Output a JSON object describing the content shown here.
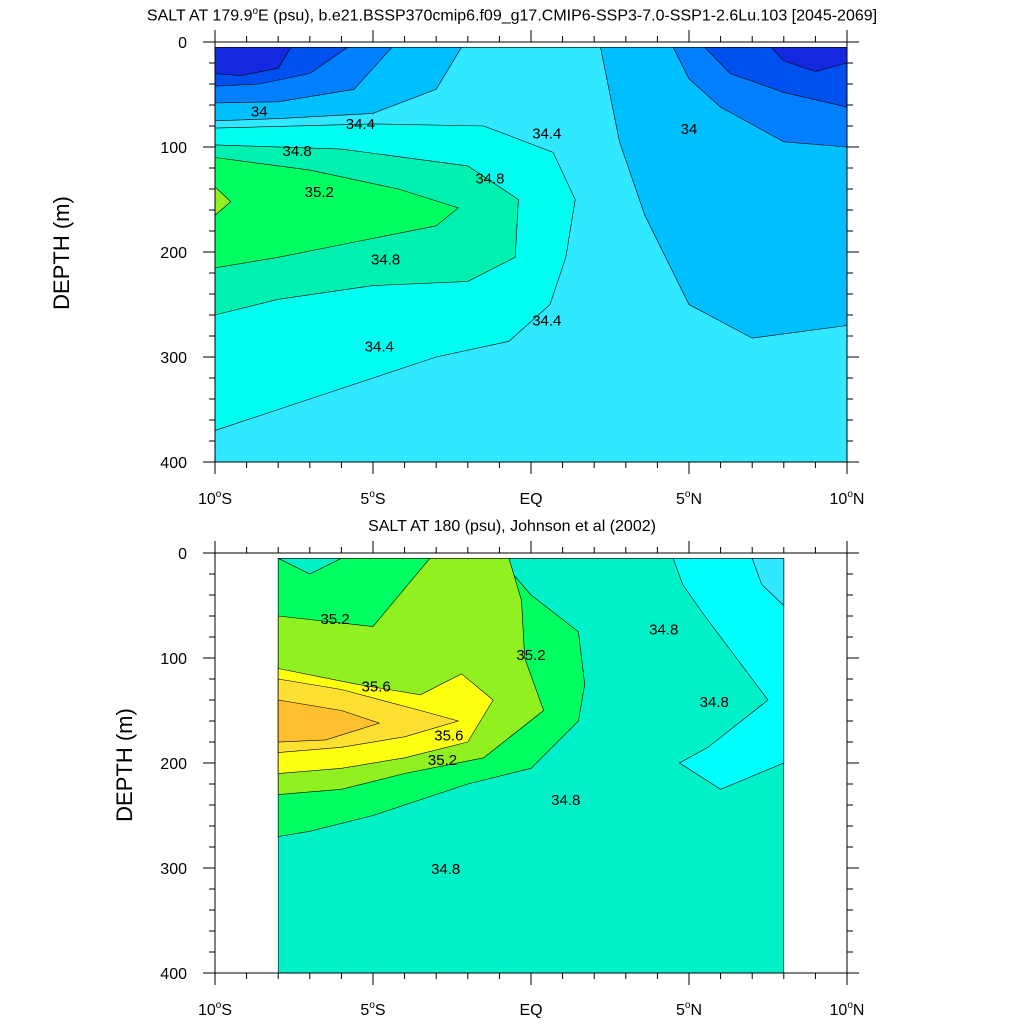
{
  "chart_data": [
    {
      "type": "contour",
      "title": "SALT AT 179.9°E (psu), b.e21.BSSP370cmip6.f09_g17.CMIP6-SSP3-7.0-SSP1-2.6Lu.103 [2045-2069]",
      "title_parts": {
        "pre": "SALT AT 179.9",
        "sup": "o",
        "post": "E (psu), b.e21.BSSP370cmip6.f09_g17.CMIP6-SSP3-7.0-SSP1-2.6Lu.103 [2045-2069]"
      },
      "ylabel": "DEPTH (m)",
      "xlabel": "",
      "xlim": [
        -10,
        10
      ],
      "ylim": [
        400,
        0
      ],
      "x_ticks": [
        {
          "value": -10,
          "label": "10",
          "deg": "o",
          "hemi": "S"
        },
        {
          "value": -5,
          "label": "5",
          "deg": "o",
          "hemi": "S"
        },
        {
          "value": 0,
          "label": "EQ",
          "deg": "",
          "hemi": ""
        },
        {
          "value": 5,
          "label": "5",
          "deg": "o",
          "hemi": "N"
        },
        {
          "value": 10,
          "label": "10",
          "deg": "o",
          "hemi": "N"
        }
      ],
      "y_ticks": [
        0,
        100,
        200,
        300,
        400
      ],
      "contour_labels": [
        {
          "text": "34",
          "x": -8.6,
          "y": 66
        },
        {
          "text": "34.4",
          "x": -5.4,
          "y": 78
        },
        {
          "text": "34.8",
          "x": -7.4,
          "y": 104
        },
        {
          "text": "35.2",
          "x": -6.7,
          "y": 143
        },
        {
          "text": "34.8",
          "x": -1.3,
          "y": 130
        },
        {
          "text": "34.4",
          "x": 0.5,
          "y": 87
        },
        {
          "text": "34",
          "x": 5.0,
          "y": 83
        },
        {
          "text": "34.8",
          "x": -4.6,
          "y": 207
        },
        {
          "text": "34.4",
          "x": 0.5,
          "y": 265
        },
        {
          "text": "34.4",
          "x": -4.8,
          "y": 290
        }
      ],
      "regions": [
        {
          "value": 34.6,
          "color": "#30e8ff",
          "points": [
            [
              -10,
              5
            ],
            [
              10,
              5
            ],
            [
              10,
              400
            ],
            [
              -10,
              400
            ]
          ]
        },
        {
          "value": 34.2,
          "color": "#00bfff",
          "points": [
            [
              3.2,
              5
            ],
            [
              10,
              5
            ],
            [
              10,
              270
            ],
            [
              7,
              282
            ],
            [
              5,
              250
            ],
            [
              3.6,
              165
            ],
            [
              2.8,
              95
            ],
            [
              2.2,
              5
            ]
          ]
        },
        {
          "value": 33.8,
          "color": "#0080ff",
          "points": [
            [
              4.5,
              5
            ],
            [
              10,
              5
            ],
            [
              10,
              100
            ],
            [
              8,
              95
            ],
            [
              6,
              62
            ],
            [
              5,
              35
            ]
          ]
        },
        {
          "value": 33.4,
          "color": "#0050f0",
          "points": [
            [
              5.5,
              5
            ],
            [
              10,
              5
            ],
            [
              10,
              62
            ],
            [
              8,
              48
            ],
            [
              6.3,
              30
            ]
          ]
        },
        {
          "value": 33.0,
          "color": "#1428e0",
          "points": [
            [
              7.6,
              5
            ],
            [
              10,
              5
            ],
            [
              10,
              20
            ],
            [
              9,
              28
            ],
            [
              8,
              18
            ]
          ]
        },
        {
          "value": 34.2,
          "color": "#00bfff",
          "points": [
            [
              -10,
              5
            ],
            [
              -2.2,
              5
            ],
            [
              -3,
              45
            ],
            [
              -5,
              68
            ],
            [
              -8,
              73
            ],
            [
              -10,
              75
            ]
          ]
        },
        {
          "value": 33.8,
          "color": "#0080ff",
          "points": [
            [
              -10,
              5
            ],
            [
              -4.4,
              5
            ],
            [
              -5.6,
              45
            ],
            [
              -8,
              57
            ],
            [
              -10,
              58
            ]
          ]
        },
        {
          "value": 33.4,
          "color": "#0050f0",
          "points": [
            [
              -10,
              5
            ],
            [
              -5.8,
              5
            ],
            [
              -7,
              30
            ],
            [
              -8.6,
              40
            ],
            [
              -10,
              42
            ]
          ]
        },
        {
          "value": 33.0,
          "color": "#1428e0",
          "points": [
            [
              -10,
              5
            ],
            [
              -7.6,
              5
            ],
            [
              -8,
              25
            ],
            [
              -9.2,
              32
            ],
            [
              -10,
              30
            ]
          ]
        },
        {
          "value": 34.6,
          "color": "#00fff0",
          "points": [
            [
              -10,
              82
            ],
            [
              -5,
              78
            ],
            [
              -1.5,
              80
            ],
            [
              0.7,
              105
            ],
            [
              1.4,
              150
            ],
            [
              1.1,
              205
            ],
            [
              0.6,
              250
            ],
            [
              -0.7,
              285
            ],
            [
              -3,
              300
            ],
            [
              -6,
              330
            ],
            [
              -10,
              370
            ]
          ]
        },
        {
          "value": 35.0,
          "color": "#00f0b0",
          "points": [
            [
              -10,
              98
            ],
            [
              -6,
              102
            ],
            [
              -2,
              118
            ],
            [
              -0.4,
              150
            ],
            [
              -0.5,
              205
            ],
            [
              -2,
              228
            ],
            [
              -5,
              232
            ],
            [
              -8,
              245
            ],
            [
              -10,
              260
            ]
          ]
        },
        {
          "value": 35.2,
          "color": "#00ff60",
          "points": [
            [
              -10,
              110
            ],
            [
              -7,
              122
            ],
            [
              -4.2,
              140
            ],
            [
              -2.3,
              158
            ],
            [
              -3,
              175
            ],
            [
              -5.5,
              190
            ],
            [
              -8,
              205
            ],
            [
              -10,
              215
            ]
          ]
        },
        {
          "value": 35.4,
          "color": "#90f020",
          "points": [
            [
              -10,
              138
            ],
            [
              -9.5,
              152
            ],
            [
              -10,
              165
            ]
          ]
        }
      ]
    },
    {
      "type": "contour",
      "title": "SALT AT 180 (psu), Johnson et al (2002)",
      "title_parts": {
        "pre": "SALT AT 180 (psu), Johnson et al (2002)",
        "sup": "",
        "post": ""
      },
      "ylabel": "DEPTH (m)",
      "xlabel": "",
      "xlim": [
        -10,
        10
      ],
      "ylim": [
        400,
        0
      ],
      "data_extent_x": [
        -8,
        8
      ],
      "data_extent_y": [
        5,
        400
      ],
      "x_ticks": [
        {
          "value": -10,
          "label": "10",
          "deg": "o",
          "hemi": "S"
        },
        {
          "value": -5,
          "label": "5",
          "deg": "o",
          "hemi": "S"
        },
        {
          "value": 0,
          "label": "EQ",
          "deg": "",
          "hemi": ""
        },
        {
          "value": 5,
          "label": "5",
          "deg": "o",
          "hemi": "N"
        },
        {
          "value": 10,
          "label": "10",
          "deg": "o",
          "hemi": "N"
        }
      ],
      "y_ticks": [
        0,
        100,
        200,
        300,
        400
      ],
      "contour_labels": [
        {
          "text": "35.2",
          "x": -6.2,
          "y": 63
        },
        {
          "text": "35.2",
          "x": 0.0,
          "y": 97
        },
        {
          "text": "35.6",
          "x": -4.9,
          "y": 127
        },
        {
          "text": "35.6",
          "x": -2.6,
          "y": 174
        },
        {
          "text": "35.2",
          "x": -2.8,
          "y": 197
        },
        {
          "text": "34.8",
          "x": 4.2,
          "y": 73
        },
        {
          "text": "34.8",
          "x": 5.8,
          "y": 142
        },
        {
          "text": "34.8",
          "x": 1.1,
          "y": 235
        },
        {
          "text": "34.8",
          "x": -2.7,
          "y": 301
        }
      ],
      "regions": [
        {
          "value": 35.0,
          "color": "#00f0c8",
          "points": [
            [
              -8,
              5
            ],
            [
              8,
              5
            ],
            [
              8,
              400
            ],
            [
              -8,
              400
            ]
          ]
        },
        {
          "value": 34.6,
          "color": "#00ffff",
          "points": [
            [
              4.5,
              5
            ],
            [
              8,
              5
            ],
            [
              8,
              200
            ],
            [
              6,
              225
            ],
            [
              4.7,
              200
            ],
            [
              5.6,
              185
            ],
            [
              7.5,
              140
            ],
            [
              6.5,
              100
            ],
            [
              5.5,
              60
            ],
            [
              4.8,
              30
            ]
          ]
        },
        {
          "value": 34.4,
          "color": "#30e8ff",
          "points": [
            [
              7,
              5
            ],
            [
              8,
              5
            ],
            [
              8,
              50
            ],
            [
              7.3,
              30
            ]
          ]
        },
        {
          "value": 35.2,
          "color": "#00ff60",
          "points": [
            [
              -8,
              5
            ],
            [
              -7,
              20
            ],
            [
              -6,
              5
            ],
            [
              -1,
              5
            ],
            [
              0,
              40
            ],
            [
              1.5,
              75
            ],
            [
              1.7,
              125
            ],
            [
              1.5,
              160
            ],
            [
              0,
              205
            ],
            [
              -2,
              220
            ],
            [
              -5,
              250
            ],
            [
              -7,
              265
            ],
            [
              -8,
              270
            ]
          ]
        },
        {
          "value": 35.4,
          "color": "#90f020",
          "points": [
            [
              -8,
              60
            ],
            [
              -5,
              70
            ],
            [
              -3.2,
              5
            ],
            [
              -0.7,
              5
            ],
            [
              -0.3,
              45
            ],
            [
              -0.2,
              100
            ],
            [
              0.4,
              150
            ],
            [
              -1.5,
              195
            ],
            [
              -4,
              210
            ],
            [
              -6,
              225
            ],
            [
              -8,
              230
            ]
          ]
        },
        {
          "value": 35.6,
          "color": "#ffff10",
          "points": [
            [
              -8,
              110
            ],
            [
              -5.5,
              125
            ],
            [
              -3.5,
              135
            ],
            [
              -2.2,
              115
            ],
            [
              -1.2,
              140
            ],
            [
              -2,
              180
            ],
            [
              -4,
              195
            ],
            [
              -6,
              205
            ],
            [
              -8,
              210
            ]
          ]
        },
        {
          "value": 35.8,
          "color": "#ffe030",
          "points": [
            [
              -8,
              120
            ],
            [
              -6,
              130
            ],
            [
              -3.5,
              150
            ],
            [
              -2.3,
              160
            ],
            [
              -4,
              175
            ],
            [
              -6,
              185
            ],
            [
              -8,
              190
            ]
          ]
        },
        {
          "value": 36.0,
          "color": "#ffc030",
          "points": [
            [
              -8,
              140
            ],
            [
              -6,
              150
            ],
            [
              -4.8,
              162
            ],
            [
              -6.5,
              178
            ],
            [
              -8,
              180
            ]
          ]
        }
      ]
    }
  ]
}
